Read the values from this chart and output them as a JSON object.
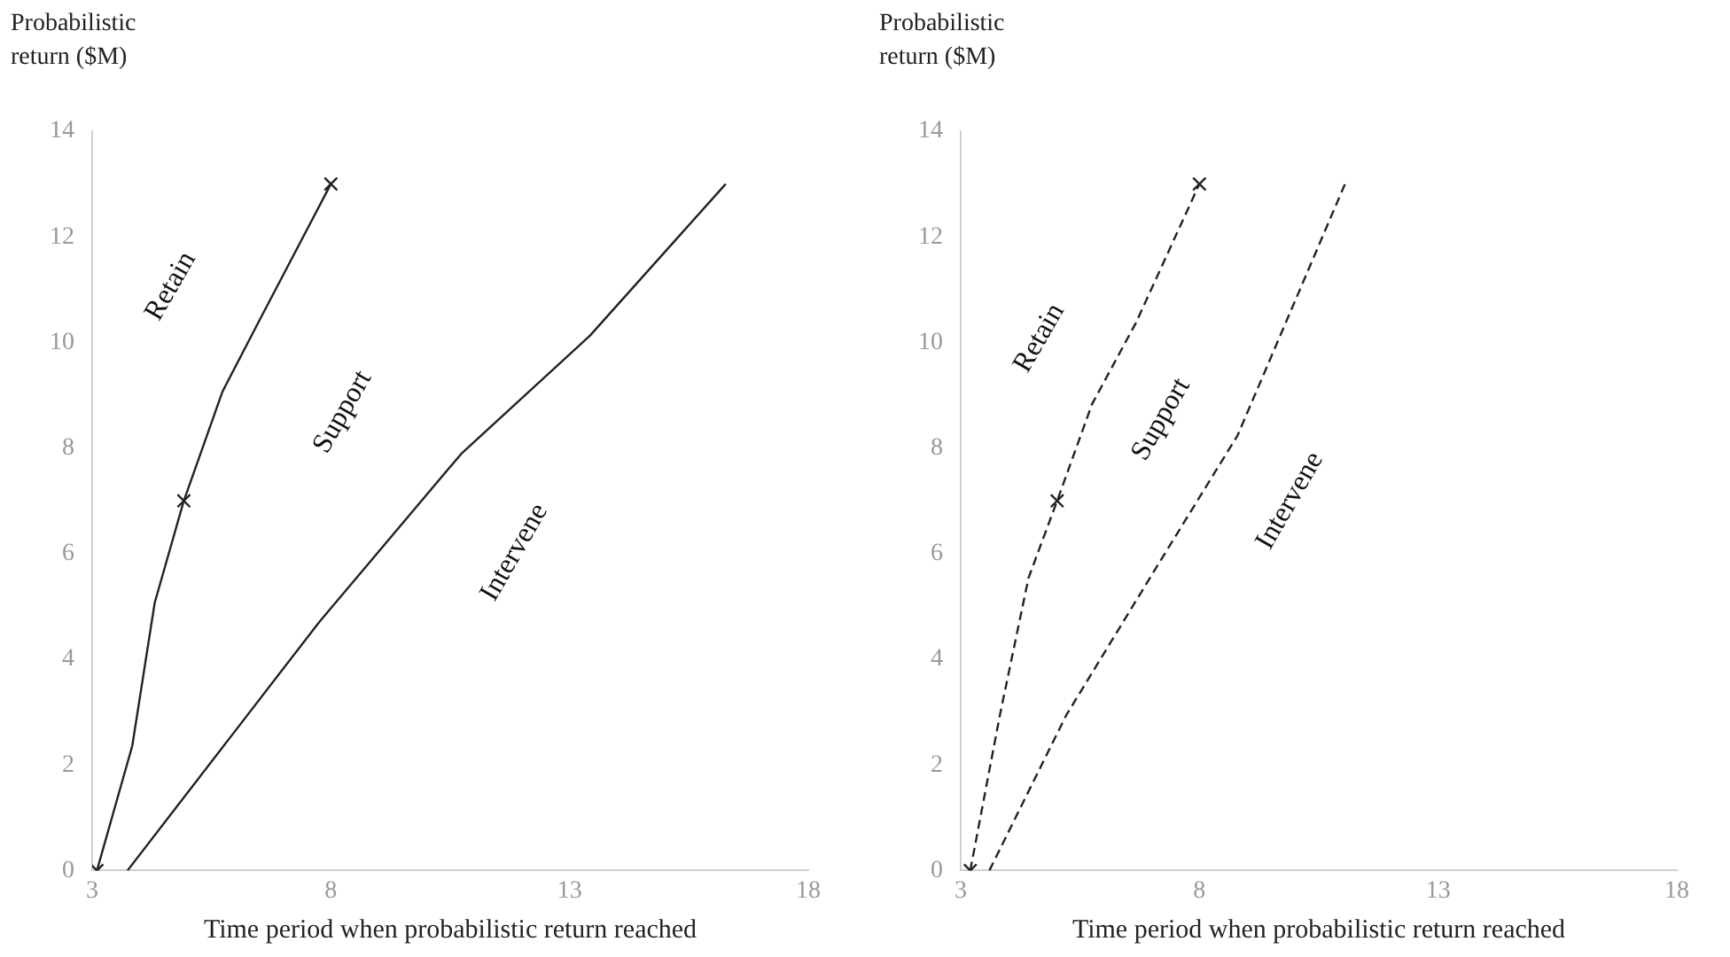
{
  "chart_data": [
    {
      "type": "line",
      "xlabel": "Time period when probabilistic return reached",
      "ylabel": "Probabilistic return ($M)",
      "xlim": [
        3,
        18
      ],
      "xticks": [
        3,
        8,
        13,
        18
      ],
      "ylim": [
        0,
        14
      ],
      "yticks": [
        0,
        2,
        4,
        6,
        8,
        10,
        12,
        14
      ],
      "grid": false,
      "legend": false,
      "line_style": "solid",
      "series": [
        {
          "color": "#222222",
          "marker": "none",
          "x": [
            3.1,
            3.84,
            4.31,
            4.92,
            5.73,
            6.54,
            8
          ],
          "values": [
            0,
            2.36,
            5.07,
            7.0,
            9.07,
            10.48,
            13.0
          ]
        },
        {
          "type": "scatter",
          "color": "#222222",
          "marker": "cross",
          "x": [
            3.1,
            4.92,
            8
          ],
          "values": [
            0,
            7.0,
            13.0
          ]
        },
        {
          "color": "#222222",
          "marker": "none",
          "x": [
            3.74,
            7.76,
            10.73,
            13.43,
            16.27
          ],
          "values": [
            0,
            4.71,
            7.89,
            10.13,
            13.0
          ]
        }
      ],
      "annotations": [
        "Retain",
        "Support",
        "Intervene"
      ]
    },
    {
      "type": "line",
      "xlabel": "Time period when probabilistic return reached",
      "ylabel": "Probabilistic return ($M)",
      "xlim": [
        3,
        18
      ],
      "xticks": [
        3,
        8,
        13,
        18
      ],
      "ylim": [
        0,
        14
      ],
      "yticks": [
        0,
        2,
        4,
        6,
        8,
        10,
        12,
        14
      ],
      "grid": false,
      "legend": false,
      "line_style": "dashed",
      "series": [
        {
          "color": "#222222",
          "marker": "none",
          "x": [
            3.2,
            3.82,
            4.42,
            5.02,
            5.75,
            6.67,
            8
          ],
          "values": [
            0,
            2.94,
            5.54,
            7.0,
            8.83,
            10.37,
            13.0
          ]
        },
        {
          "type": "scatter",
          "color": "#222222",
          "marker": "cross",
          "x": [
            3.2,
            5.02,
            8
          ],
          "values": [
            0,
            7.0,
            13.0
          ]
        },
        {
          "color": "#222222",
          "marker": "none",
          "x": [
            3.6,
            5.21,
            7.2,
            8.8,
            11.05
          ],
          "values": [
            0,
            2.94,
            5.89,
            8.24,
            13.0
          ]
        }
      ],
      "annotations": [
        "Retain",
        "Support",
        "Intervene"
      ]
    }
  ]
}
